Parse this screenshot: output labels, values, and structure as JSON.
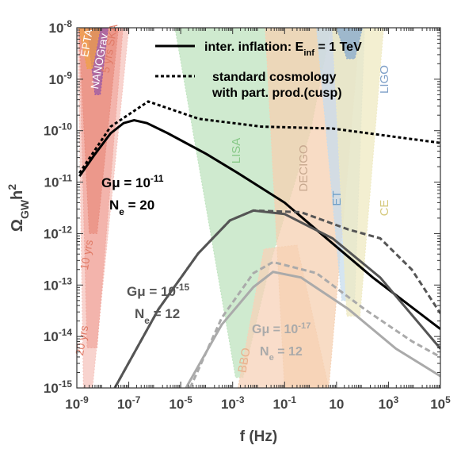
{
  "chart_data": {
    "type": "line",
    "x_label": "f (Hz)",
    "y_label": "Ω_{GW}h^{2}",
    "xlog": true,
    "ylog": true,
    "xlim": [
      1e-09,
      100000.0
    ],
    "ylim": [
      1e-15,
      1e-08
    ],
    "xticks": [
      {
        "value": 1e-09,
        "label": "10^{-9}"
      },
      {
        "value": 1e-07,
        "label": "10^{-7}"
      },
      {
        "value": 1e-05,
        "label": "10^{-5}"
      },
      {
        "value": 0.001,
        "label": "10^{-3}"
      },
      {
        "value": 0.1,
        "label": "10^{-1}"
      },
      {
        "value": 10,
        "label": "10"
      },
      {
        "value": 1000.0,
        "label": "10^{3}"
      },
      {
        "value": 100000.0,
        "label": "10^{5}"
      }
    ],
    "yticks": [
      {
        "value": 1e-15,
        "label": "10^{-15}"
      },
      {
        "value": 1e-14,
        "label": "10^{-14}"
      },
      {
        "value": 1e-13,
        "label": "10^{-13}"
      },
      {
        "value": 1e-12,
        "label": "10^{-12}"
      },
      {
        "value": 1e-11,
        "label": "10^{-11}"
      },
      {
        "value": 1e-10,
        "label": "10^{-10}"
      },
      {
        "value": 1e-09,
        "label": "10^{-9}"
      },
      {
        "value": 1e-08,
        "label": "10^{-8}"
      }
    ],
    "regions": [
      {
        "name": "20 yrs",
        "color": "#f6c4bd",
        "x": [
          1.1e-09,
          1.8e-09,
          4e-09,
          1e-07
        ],
        "y": [
          1e-08,
          1e-15,
          1e-15,
          1e-08
        ]
      },
      {
        "name": "10 yrs",
        "color": "#f2aaa0",
        "x": [
          1.2e-09,
          2.5e-09,
          6e-09,
          6e-08
        ],
        "y": [
          1e-08,
          6e-15,
          6e-15,
          1e-08
        ]
      },
      {
        "name": "5 yrs SKA",
        "color": "#e98f80",
        "x": [
          1.2e-09,
          3e-09,
          6e-09,
          4e-08
        ],
        "y": [
          1e-08,
          1e-12,
          1e-12,
          1e-08
        ]
      },
      {
        "name": "NANOGrav",
        "color": "#9b5aa6",
        "x": [
          2.5e-09,
          5e-09,
          8e-09,
          1.6e-08
        ],
        "y": [
          1e-08,
          5e-10,
          5e-10,
          1e-08
        ]
      },
      {
        "name": "EPTA",
        "color": "#f0a048",
        "x": [
          1.2e-09,
          2.5e-09,
          4e-09,
          8e-09
        ],
        "y": [
          1e-08,
          1.6e-09,
          1.6e-09,
          1e-08
        ]
      },
      {
        "name": "LISA",
        "color": "#bfe3bf",
        "x": [
          6e-06,
          0.0013,
          0.0025,
          0.03,
          1,
          6
        ],
        "y": [
          1e-08,
          1.6e-15,
          1.6e-15,
          3e-13,
          1e-10,
          1e-08
        ]
      },
      {
        "name": "BBO",
        "color": "#f7d2b8",
        "x": [
          0.0016,
          0.016,
          0.3,
          5
        ],
        "y": [
          1e-15,
          5e-13,
          6e-13,
          1e-15
        ]
      },
      {
        "name": "DECIGO",
        "color": "#f5d0b2",
        "x": [
          0.018,
          0.1,
          5,
          80
        ],
        "y": [
          1e-08,
          1e-15,
          1e-15,
          1e-08
        ]
      },
      {
        "name": "ET",
        "color": "#c7dcec",
        "x": [
          1.7,
          16,
          50,
          120
        ],
        "y": [
          1e-08,
          5e-14,
          5e-14,
          1e-08
        ]
      },
      {
        "name": "CE",
        "color": "#efeac2",
        "x": [
          7,
          25,
          80,
          650
        ],
        "y": [
          1e-08,
          2.5e-14,
          2.5e-14,
          1e-08
        ]
      },
      {
        "name": "LIGO",
        "color": "#86a8cc",
        "x": [
          10,
          25,
          50,
          100
        ],
        "y": [
          1e-08,
          2.5e-09,
          2.5e-09,
          1e-08
        ]
      }
    ],
    "series": [
      {
        "name": "inter. inflation: E_{inf} = 1 TeV",
        "color": "#000000",
        "dash": "solid",
        "x": [
          1.26e-09,
          5e-09,
          2e-08,
          6.3e-08,
          1.6e-07,
          5e-07,
          3.2e-06,
          0.0001,
          0.0016,
          0.1,
          2,
          250,
          100000.0
        ],
        "y": [
          1.3e-11,
          3.5e-11,
          8.9e-11,
          1.4e-10,
          1.6e-10,
          1.4e-10,
          8.9e-11,
          3.5e-11,
          1.5e-11,
          4e-12,
          1.1e-12,
          1.4e-13,
          1.4e-14
        ]
      },
      {
        "name": "standard cosmology\nwith part. prod.(cusp)",
        "color": "#000000",
        "dash": "dotted",
        "x": [
          1.26e-09,
          2e-08,
          5.6e-07,
          5e-05,
          0.013,
          7,
          100000.0
        ],
        "y": [
          1.5e-11,
          1.2e-10,
          3.7e-10,
          1.7e-10,
          1.2e-10,
          1.1e-10,
          5.8e-11
        ]
      },
      {
        "color": "#555555",
        "dash": "solid",
        "x": [
          2.9e-08,
          1.4e-06,
          4.7e-05,
          0.00078,
          0.0063,
          0.1,
          7,
          480,
          100000.0
        ],
        "y": [
          1e-15,
          3.4e-14,
          4.1e-13,
          1.8e-12,
          2.8e-12,
          2.4e-12,
          8.1e-13,
          1.4e-13,
          5.8e-15
        ]
      },
      {
        "color": "#555555",
        "dash": "dashed",
        "x": [
          2.9e-08,
          1.4e-06,
          4.7e-05,
          0.00078,
          0.0063,
          0.43,
          29,
          480,
          7900,
          100000.0
        ],
        "y": [
          1e-15,
          3.4e-14,
          4.1e-13,
          1.8e-12,
          2.8e-12,
          2.6e-12,
          1.2e-12,
          8.1e-13,
          2e-13,
          2.8e-14
        ]
      },
      {
        "color": "#aaaaaa",
        "dash": "solid",
        "x": [
          1.6e-05,
          0.00038,
          0.0063,
          0.036,
          0.43,
          29,
          1950,
          100000.0
        ],
        "y": [
          1e-15,
          1.7e-14,
          9.1e-14,
          1.8e-13,
          1.4e-13,
          3.4e-14,
          5.8e-15,
          1.7e-15
        ]
      },
      {
        "color": "#aaaaaa",
        "dash": "dashed",
        "x": [
          2.3e-05,
          0.00038,
          0.0063,
          0.036,
          1.7,
          120,
          7900,
          100000.0
        ],
        "y": [
          1e-15,
          2.3e-14,
          1.7e-13,
          2.8e-13,
          1.7e-13,
          3.4e-14,
          8.1e-15,
          4e-15
        ]
      }
    ],
    "annotations": [
      {
        "lines": [
          "Gμ = 10^{-11}",
          "N_{e} = 20"
        ],
        "color": "#000000"
      },
      {
        "lines": [
          "Gμ = 10^{-15}",
          "N_{e} = 12"
        ],
        "color": "#555555"
      },
      {
        "lines": [
          "Gμ = 10^{-17}",
          "N_{e} = 12"
        ],
        "color": "#aaaaaa"
      }
    ]
  }
}
